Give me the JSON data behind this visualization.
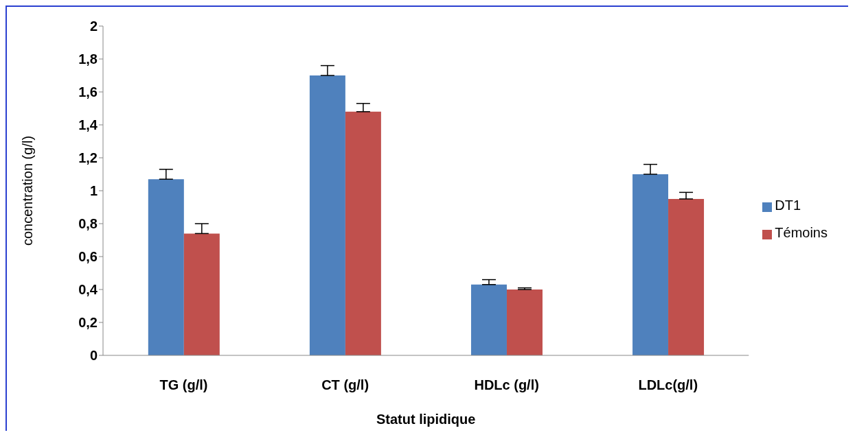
{
  "chart_data": {
    "type": "bar",
    "xlabel": "Statut lipidique",
    "ylabel": "concentration (g/l)",
    "categories": [
      "TG (g/l)",
      "CT (g/l)",
      "HDLc (g/l)",
      "LDLc(g/l)"
    ],
    "series": [
      {
        "name": "DT1",
        "color": "#4f81bd",
        "values": [
          1.07,
          1.7,
          0.43,
          1.1
        ],
        "errors": [
          [
            1.07,
            1.13
          ],
          [
            1.7,
            1.76
          ],
          [
            0.43,
            0.46
          ],
          [
            1.1,
            1.16
          ]
        ]
      },
      {
        "name": "Témoins",
        "color": "#c0504d",
        "values": [
          0.74,
          1.48,
          0.4,
          0.95
        ],
        "errors": [
          [
            0.74,
            0.8
          ],
          [
            1.48,
            1.53
          ],
          [
            0.4,
            0.41
          ],
          [
            0.95,
            0.99
          ]
        ]
      }
    ],
    "ylim": [
      0,
      2
    ],
    "yticks": [
      0,
      {
        "value": 0.2,
        "label": "0,2"
      },
      {
        "value": 0.4,
        "label": "0,4"
      },
      {
        "value": 0.6,
        "label": "0,6"
      },
      {
        "value": 0.8,
        "label": "0,8"
      },
      1,
      {
        "value": 1.2,
        "label": "1,2"
      },
      {
        "value": 1.4,
        "label": "1,4"
      },
      {
        "value": 1.6,
        "label": "1,6"
      },
      {
        "value": 1.8,
        "label": "1,8"
      },
      2
    ],
    "grid": false,
    "legend": "right"
  }
}
